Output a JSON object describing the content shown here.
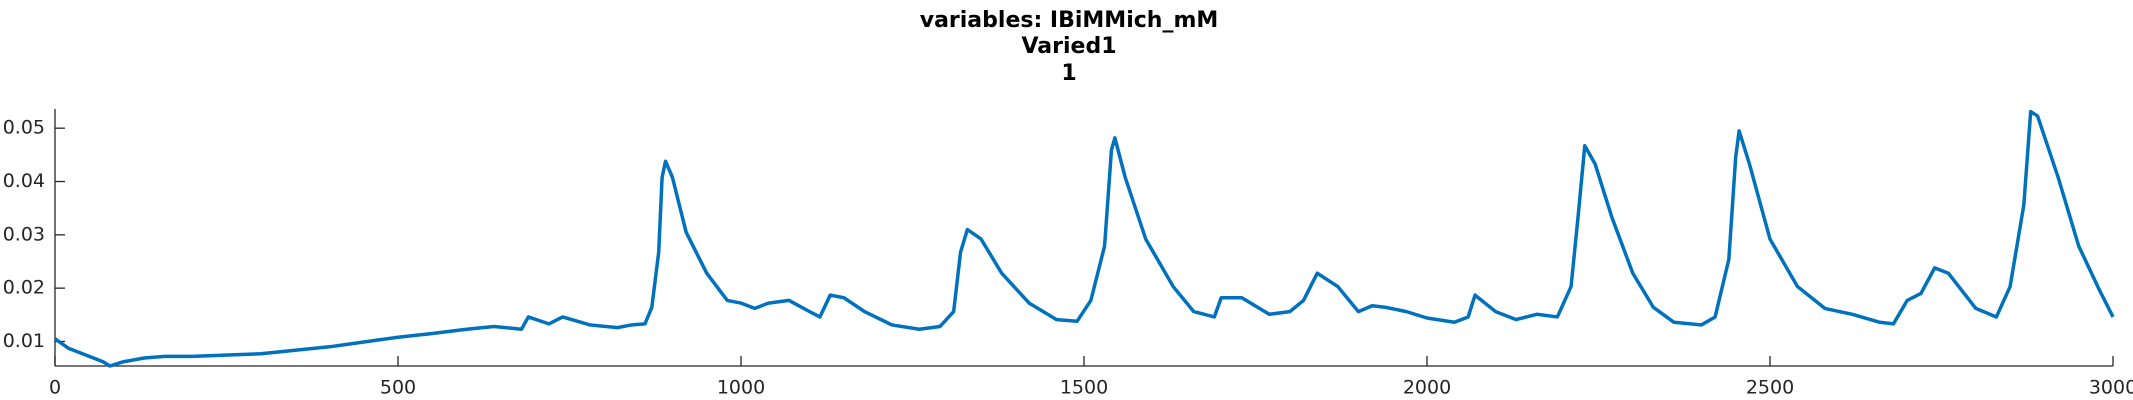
{
  "chart_data": {
    "type": "line",
    "title": "variables: IBiMMich_mM",
    "subtitle": "Varied1",
    "subtitle2": "1",
    "xlim": [
      0,
      3000
    ],
    "xticks": [
      0,
      500,
      1000,
      1500,
      2000,
      2500,
      3000
    ],
    "ylim": [
      0.0054,
      0.0536
    ],
    "yticks": [
      0.01,
      0.02,
      0.03,
      0.04,
      0.05
    ],
    "grid": false,
    "x": [
      0,
      20,
      50,
      70,
      80,
      100,
      130,
      160,
      200,
      300,
      400,
      500,
      550,
      600,
      640,
      680,
      690,
      720,
      740,
      780,
      820,
      840,
      860,
      870,
      880,
      885,
      890,
      900,
      920,
      950,
      980,
      1000,
      1020,
      1040,
      1070,
      1100,
      1115,
      1130,
      1150,
      1180,
      1220,
      1260,
      1290,
      1310,
      1320,
      1330,
      1350,
      1380,
      1420,
      1460,
      1490,
      1510,
      1530,
      1540,
      1545,
      1560,
      1590,
      1630,
      1660,
      1690,
      1700,
      1730,
      1770,
      1800,
      1820,
      1840,
      1870,
      1900,
      1920,
      1940,
      1970,
      2000,
      2040,
      2060,
      2070,
      2100,
      2130,
      2160,
      2190,
      2210,
      2220,
      2230,
      2245,
      2270,
      2300,
      2330,
      2360,
      2400,
      2420,
      2440,
      2450,
      2455,
      2470,
      2500,
      2540,
      2580,
      2620,
      2660,
      2680,
      2700,
      2720,
      2740,
      2760,
      2800,
      2830,
      2850,
      2870,
      2880,
      2890,
      2920,
      2950,
      2980,
      3000
    ],
    "series": [
      {
        "color": "#0072bd",
        "values": [
          0.0105,
          0.0087,
          0.0072,
          0.0062,
          0.0054,
          0.0062,
          0.0069,
          0.0072,
          0.0072,
          0.0077,
          0.009,
          0.0108,
          0.0115,
          0.0123,
          0.0128,
          0.0123,
          0.0146,
          0.0133,
          0.0146,
          0.0131,
          0.0126,
          0.0131,
          0.0133,
          0.0164,
          0.0267,
          0.0408,
          0.0438,
          0.0408,
          0.0305,
          0.0228,
          0.0177,
          0.0172,
          0.0162,
          0.0172,
          0.0177,
          0.0156,
          0.0146,
          0.0187,
          0.0182,
          0.0156,
          0.0131,
          0.0123,
          0.0128,
          0.0156,
          0.0267,
          0.031,
          0.0292,
          0.0228,
          0.0172,
          0.0141,
          0.0138,
          0.0177,
          0.0279,
          0.0459,
          0.0482,
          0.0408,
          0.0292,
          0.0203,
          0.0156,
          0.0146,
          0.0182,
          0.0182,
          0.0151,
          0.0156,
          0.0177,
          0.0228,
          0.0203,
          0.0156,
          0.0167,
          0.0164,
          0.0156,
          0.0144,
          0.0136,
          0.0146,
          0.0187,
          0.0156,
          0.0141,
          0.0151,
          0.0146,
          0.0203,
          0.0331,
          0.0467,
          0.0433,
          0.0331,
          0.0228,
          0.0164,
          0.0136,
          0.0131,
          0.0146,
          0.0254,
          0.0446,
          0.0495,
          0.0433,
          0.0292,
          0.0203,
          0.0162,
          0.0151,
          0.0136,
          0.0133,
          0.0177,
          0.019,
          0.0238,
          0.0228,
          0.0162,
          0.0146,
          0.0203,
          0.0356,
          0.0531,
          0.0523,
          0.0408,
          0.0279,
          0.0197,
          0.0146
        ]
      }
    ]
  }
}
